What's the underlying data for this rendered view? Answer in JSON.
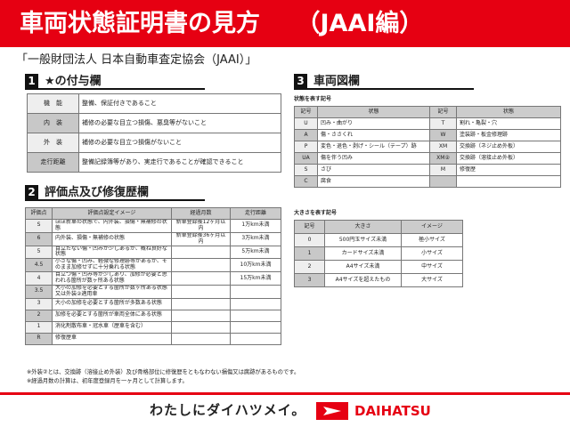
{
  "title": "車両状態証明書の見方　　（JAAI編）",
  "org": "「一般財団法人 日本自動車査定協会（JAAI）」",
  "sec1": {
    "num": "1",
    "title": "★の付与欄",
    "rows": [
      [
        "機　能",
        "整備、保証付きであること"
      ],
      [
        "内　装",
        "補修の必要な目立つ損傷、悪臭等がないこと"
      ],
      [
        "外　装",
        "補修の必要な目立つ損傷がないこと"
      ],
      [
        "走行距離",
        "整備記録簿等があり、実走行であることが確認できること"
      ]
    ]
  },
  "sec2": {
    "num": "2",
    "title": "評価点及び修復歴欄",
    "headers": [
      "評価点",
      "評価点設定イメージ",
      "経過月数",
      "走行距離"
    ],
    "rows": [
      [
        "S",
        "ほぼ新車の状態で、内外装、損傷・無補修の状態",
        "新車登録後12ヶ月以内",
        "1万km未満"
      ],
      [
        "6",
        "内外装、損傷・無補修の状態",
        "新車登録後36ヶ月以内",
        "3万km未満"
      ],
      [
        "5",
        "目立たない傷・凹みが少しあるが、概ね良好な状態",
        "",
        "5万km未満"
      ],
      [
        "4.5",
        "小さな傷・凹み、軽微な修理跡等があるが、そのまま加修せずに十分乗れる状態",
        "",
        "10万km未満"
      ],
      [
        "4",
        "目立つ傷・凹み等が少しあり、加修が必要と思われる箇所が数ヶ所ある状態",
        "",
        "15万km未満"
      ],
      [
        "3.5",
        "大小の加修を必要とする箇所が数ヶ所ある状態又は外装②適用車",
        "",
        ""
      ],
      [
        "3",
        "大小の加修を必要とする箇所が多数ある状態",
        "",
        ""
      ],
      [
        "2",
        "加修を必要とする箇所が車両全体にある状態",
        "",
        ""
      ],
      [
        "1",
        "消化剤散布車・冠水車（歴車を含む）",
        "",
        ""
      ],
      [
        "R",
        "修復歴車",
        "",
        ""
      ]
    ]
  },
  "notes": [
    "※外装②とは、交換跡（溶接止め外装）及び骨格部位に修復歴をともなわない損傷又は腐跡があるものです。",
    "※経過月数の計算は、初年度登録月を一ヶ月として計算します。"
  ],
  "sec3": {
    "num": "3",
    "title": "車両図欄",
    "state_label": "状態を表す記号",
    "state_headers": [
      "記号",
      "状態",
      "記号",
      "状態"
    ],
    "state_rows": [
      [
        "U",
        "凹み・曲がり",
        "T",
        "割れ・亀裂・穴"
      ],
      [
        "A",
        "傷・ささくれ",
        "W",
        "塗装跡・板金修理跡"
      ],
      [
        "P",
        "変色・退色・剥げ・シール（テープ）跡",
        "XM",
        "交換跡（ネジ止め外板）"
      ],
      [
        "UA",
        "傷を伴う凹み",
        "XM②",
        "交換跡（溶接止め外板）"
      ],
      [
        "S",
        "さび",
        "M",
        "修復歴"
      ],
      [
        "C",
        "腐食",
        "",
        ""
      ]
    ],
    "size_label": "大きさを表す記号",
    "size_headers": [
      "記号",
      "大きさ",
      "イメージ"
    ],
    "size_rows": [
      [
        "0",
        "500円玉サイズ未満",
        "極小サイズ"
      ],
      [
        "1",
        "カードサイズ未満",
        "小サイズ"
      ],
      [
        "2",
        "A4サイズ未満",
        "中サイズ"
      ],
      [
        "3",
        "A4サイズを超えたもの",
        "大サイズ"
      ]
    ]
  },
  "footer": {
    "slogan": "わたしにダイハツメイ。",
    "brand": "DAIHATSU"
  },
  "colors": {
    "accent": "#e60012"
  }
}
